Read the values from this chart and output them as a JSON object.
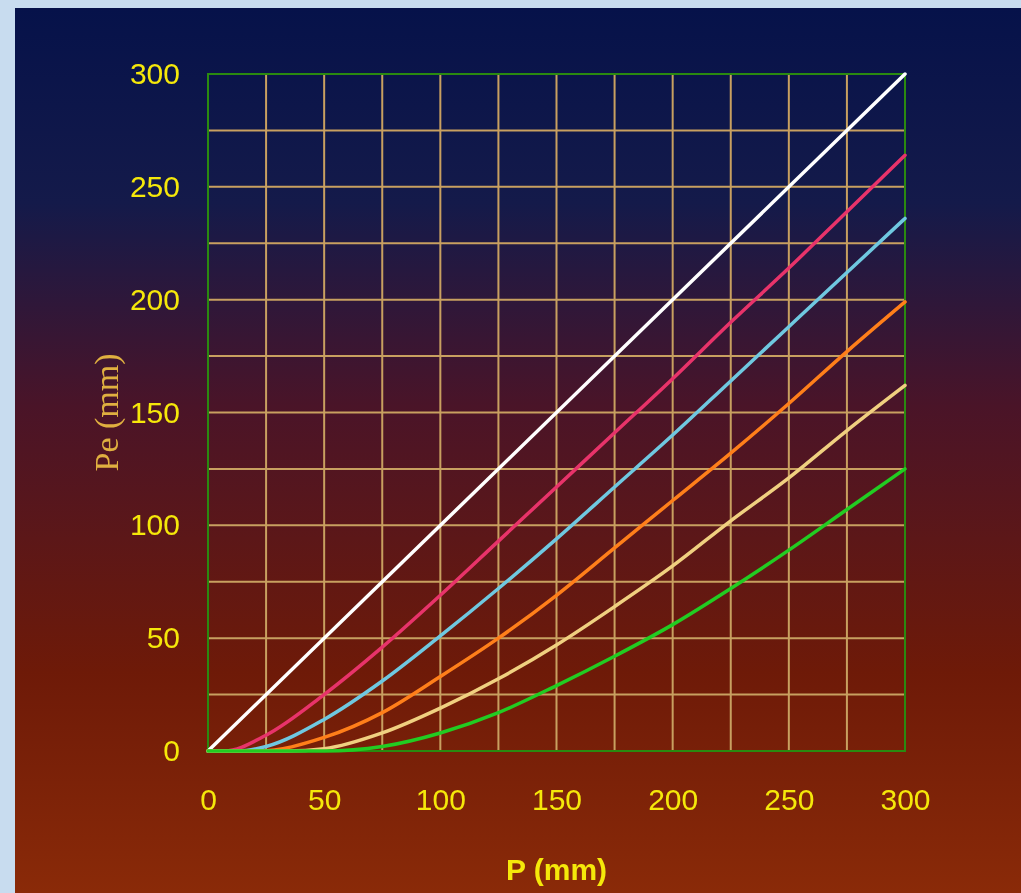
{
  "chart_data": {
    "type": "line",
    "xlabel": "P (mm)",
    "ylabel": "Pe (mm)",
    "xlim": [
      0,
      300
    ],
    "ylim": [
      0,
      300
    ],
    "xticks": [
      0,
      {
        "value": 25,
        "label": null
      },
      50,
      {
        "value": 75,
        "label": null
      },
      100,
      {
        "value": 125,
        "label": null
      },
      150,
      {
        "value": 175,
        "label": null
      },
      200,
      {
        "value": 225,
        "label": null
      },
      250,
      {
        "value": 275,
        "label": null
      },
      300
    ],
    "yticks": [
      0,
      {
        "value": 25,
        "label": null
      },
      50,
      {
        "value": 75,
        "label": null
      },
      100,
      {
        "value": 125,
        "label": null
      },
      150,
      {
        "value": 175,
        "label": null
      },
      200,
      {
        "value": 225,
        "label": null
      },
      250,
      {
        "value": 275,
        "label": null
      },
      300
    ],
    "grid": true,
    "marker": "none",
    "line_style": "solid",
    "series": [
      {
        "color": "#ffffff",
        "x": [
          0,
          300
        ],
        "values": [
          0,
          300
        ]
      },
      {
        "color": "#e8336a",
        "x": [
          0,
          7,
          25,
          50,
          75,
          100,
          125,
          150,
          175,
          200,
          225,
          250,
          275,
          300
        ],
        "values": [
          0,
          0,
          7,
          25,
          46,
          69,
          93,
          117,
          141,
          165,
          190,
          214,
          239,
          264
        ]
      },
      {
        "color": "#6fc8e0",
        "x": [
          0,
          13,
          25,
          50,
          75,
          100,
          125,
          150,
          175,
          200,
          225,
          250,
          275,
          300
        ],
        "values": [
          0,
          0,
          2,
          14,
          31,
          51,
          72,
          94,
          117,
          140,
          164,
          188,
          212,
          236
        ]
      },
      {
        "color": "#ff7f1a",
        "x": [
          0,
          22,
          50,
          75,
          100,
          125,
          150,
          175,
          200,
          225,
          250,
          275,
          300
        ],
        "values": [
          0,
          0,
          6,
          17,
          33,
          50,
          69,
          90,
          111,
          132,
          154,
          177,
          199
        ]
      },
      {
        "color": "#f0d080",
        "x": [
          0,
          34,
          50,
          75,
          100,
          125,
          150,
          175,
          200,
          225,
          250,
          275,
          300
        ],
        "values": [
          0,
          0,
          1,
          8,
          19,
          32,
          47,
          64,
          82,
          102,
          121,
          142,
          162
        ]
      },
      {
        "color": "#22cc22",
        "x": [
          0,
          50,
          75,
          100,
          125,
          150,
          175,
          200,
          225,
          250,
          275,
          300
        ],
        "values": [
          0,
          0,
          2,
          8,
          17,
          29,
          42,
          56,
          72,
          89,
          107,
          125
        ]
      }
    ]
  }
}
